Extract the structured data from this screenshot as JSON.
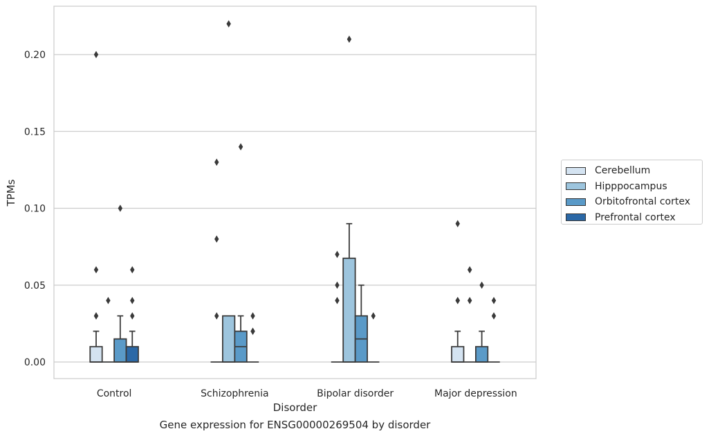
{
  "chart_data": {
    "type": "box",
    "title": "Gene expression for ENSG00000269504 by disorder",
    "xlabel": "Disorder",
    "ylabel": "TPMs",
    "ylim": [
      -0.011,
      0.232
    ],
    "yticks": [
      0.0,
      0.05,
      0.1,
      0.15,
      0.2
    ],
    "ytick_labels": [
      "0.00",
      "0.05",
      "0.10",
      "0.15",
      "0.20"
    ],
    "categories": [
      "Control",
      "Schizophrenia",
      "Bipolar disorder",
      "Major depression"
    ],
    "grid": "horizontal",
    "legend_position": "right",
    "series": [
      {
        "name": "Cerebellum",
        "color": "#d4e3f1",
        "boxes": [
          {
            "q1": 0.0,
            "median": 0.0,
            "q3": 0.01,
            "whisker_low": 0.0,
            "whisker_high": 0.02,
            "outliers": [
              0.03,
              0.03,
              0.06,
              0.2
            ]
          },
          {
            "q1": 0.0,
            "median": 0.0,
            "q3": 0.0,
            "whisker_low": 0.0,
            "whisker_high": 0.0,
            "outliers": [
              0.03,
              0.08,
              0.13
            ]
          },
          {
            "q1": 0.0,
            "median": 0.0,
            "q3": 0.0,
            "whisker_low": 0.0,
            "whisker_high": 0.0,
            "outliers": [
              0.04,
              0.05,
              0.07
            ]
          },
          {
            "q1": 0.0,
            "median": 0.0,
            "q3": 0.01,
            "whisker_low": 0.0,
            "whisker_high": 0.02,
            "outliers": [
              0.04,
              0.04,
              0.09
            ]
          }
        ]
      },
      {
        "name": "Hipppocampus",
        "color": "#9dc5de",
        "boxes": [
          {
            "q1": 0.0,
            "median": 0.0,
            "q3": 0.0,
            "whisker_low": 0.0,
            "whisker_high": 0.0,
            "outliers": [
              0.04
            ]
          },
          {
            "q1": 0.0,
            "median": 0.0,
            "q3": 0.03,
            "whisker_low": 0.0,
            "whisker_high": 0.03,
            "outliers": [
              0.22
            ]
          },
          {
            "q1": 0.0,
            "median": 0.0,
            "q3": 0.0675,
            "whisker_low": 0.0,
            "whisker_high": 0.09,
            "outliers": [
              0.21
            ]
          },
          {
            "q1": 0.0,
            "median": 0.0,
            "q3": 0.0,
            "whisker_low": 0.0,
            "whisker_high": 0.0,
            "outliers": [
              0.04,
              0.06
            ]
          }
        ]
      },
      {
        "name": "Orbitofrontal cortex",
        "color": "#5a9ac8",
        "boxes": [
          {
            "q1": 0.0,
            "median": 0.0,
            "q3": 0.015,
            "whisker_low": 0.0,
            "whisker_high": 0.03,
            "outliers": [
              0.1
            ]
          },
          {
            "q1": 0.0,
            "median": 0.01,
            "q3": 0.02,
            "whisker_low": 0.0,
            "whisker_high": 0.03,
            "outliers": [
              0.14
            ]
          },
          {
            "q1": 0.0,
            "median": 0.015,
            "q3": 0.03,
            "whisker_low": 0.0,
            "whisker_high": 0.05,
            "outliers": []
          },
          {
            "q1": 0.0,
            "median": 0.0,
            "q3": 0.01,
            "whisker_low": 0.0,
            "whisker_high": 0.02,
            "outliers": [
              0.05
            ]
          }
        ]
      },
      {
        "name": "Prefrontal cortex",
        "color": "#2b68a6",
        "boxes": [
          {
            "q1": 0.0,
            "median": 0.0,
            "q3": 0.01,
            "whisker_low": 0.0,
            "whisker_high": 0.02,
            "outliers": [
              0.03,
              0.04,
              0.06
            ]
          },
          {
            "q1": 0.0,
            "median": 0.0,
            "q3": 0.0,
            "whisker_low": 0.0,
            "whisker_high": 0.0,
            "outliers": [
              0.02,
              0.02,
              0.03
            ]
          },
          {
            "q1": 0.0,
            "median": 0.0,
            "q3": 0.0,
            "whisker_low": 0.0,
            "whisker_high": 0.0,
            "outliers": [
              0.03
            ]
          },
          {
            "q1": 0.0,
            "median": 0.0,
            "q3": 0.0,
            "whisker_low": 0.0,
            "whisker_high": 0.0,
            "outliers": [
              0.03,
              0.04
            ]
          }
        ]
      }
    ]
  }
}
